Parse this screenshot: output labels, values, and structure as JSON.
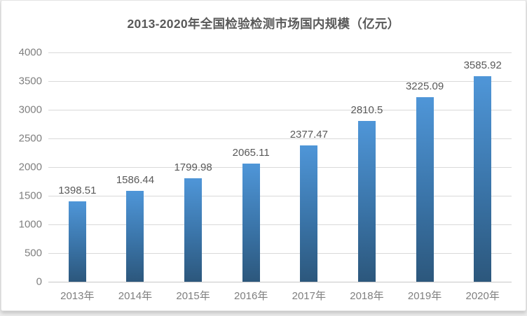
{
  "chart_data": {
    "type": "bar",
    "title": "2013-2020年全国检验检测市场国内规模（亿元）",
    "categories": [
      "2013年",
      "2014年",
      "2015年",
      "2016年",
      "2017年",
      "2018年",
      "2019年",
      "2020年"
    ],
    "values": [
      1398.51,
      1586.44,
      1799.98,
      2065.11,
      2377.47,
      2810.5,
      3225.09,
      3585.92
    ],
    "data_labels": [
      "1398.51",
      "1586.44",
      "1799.98",
      "2065.11",
      "2377.47",
      "2810.5",
      "3225.09",
      "3585.92"
    ],
    "xlabel": "",
    "ylabel": "",
    "ylim": [
      0,
      4000
    ],
    "yticks": [
      0,
      500,
      1000,
      1500,
      2000,
      2500,
      3000,
      3500,
      4000
    ],
    "grid": true,
    "legend": false,
    "colors": {
      "bar_gradient_top": "#4f96d8",
      "bar_gradient_bottom": "#2c577c",
      "gridline": "#d9d9d9",
      "axis_labels": "#7f7f7f",
      "data_labels": "#595959",
      "title": "#595959",
      "card_background": "#ffffff"
    }
  }
}
